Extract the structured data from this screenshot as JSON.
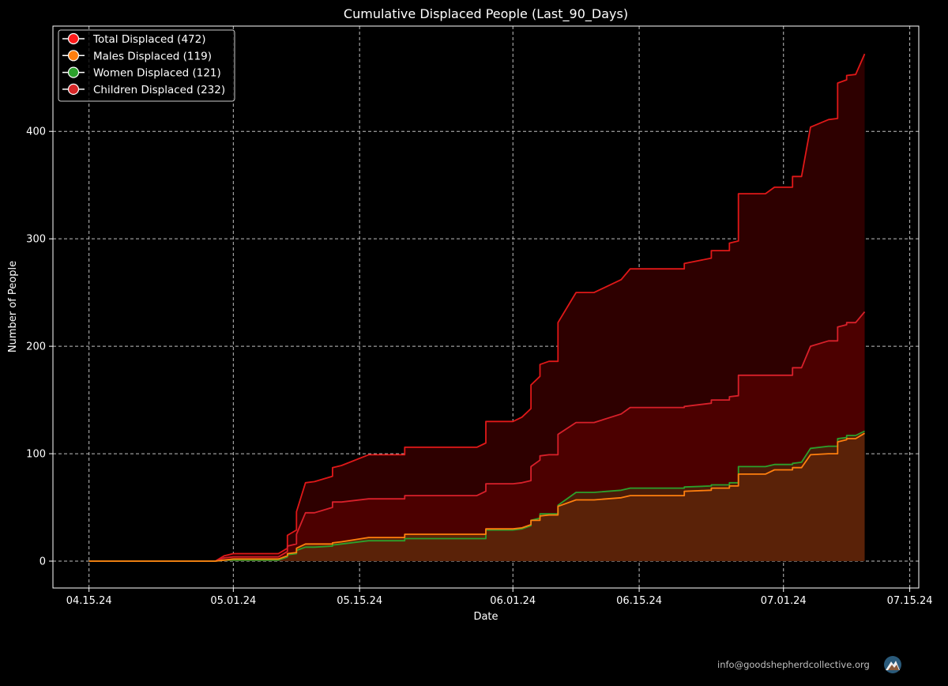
{
  "chart_data": {
    "type": "area",
    "title": "Cumulative Displaced People (Last_90_Days)",
    "xlabel": "Date",
    "ylabel": "Number of People",
    "ylim": [
      -25,
      498
    ],
    "xlim": [
      "2024-04-11",
      "2024-07-16"
    ],
    "grid": true,
    "legend_position": "top-left",
    "x_ticks": [
      {
        "date": "2024-04-15",
        "label": "04.15.24"
      },
      {
        "date": "2024-05-01",
        "label": "05.01.24"
      },
      {
        "date": "2024-05-15",
        "label": "05.15.24"
      },
      {
        "date": "2024-06-01",
        "label": "06.01.24"
      },
      {
        "date": "2024-06-15",
        "label": "06.15.24"
      },
      {
        "date": "2024-07-01",
        "label": "07.01.24"
      },
      {
        "date": "2024-07-15",
        "label": "07.15.24"
      }
    ],
    "y_ticks": [
      0,
      100,
      200,
      300,
      400
    ],
    "series": [
      {
        "name": "Total Displaced (472)",
        "line_color": "#e01818",
        "fill_color": "#2e0000",
        "marker_color": "#ff1a1a",
        "points": [
          [
            "2024-04-15",
            0
          ],
          [
            "2024-04-29",
            0
          ],
          [
            "2024-04-30",
            5
          ],
          [
            "2024-05-01",
            7
          ],
          [
            "2024-05-06",
            7
          ],
          [
            "2024-05-07",
            12
          ],
          [
            "2024-05-07",
            24
          ],
          [
            "2024-05-08",
            29
          ],
          [
            "2024-05-08",
            46
          ],
          [
            "2024-05-09",
            73
          ],
          [
            "2024-05-10",
            74
          ],
          [
            "2024-05-12",
            79
          ],
          [
            "2024-05-12",
            87
          ],
          [
            "2024-05-13",
            89
          ],
          [
            "2024-05-16",
            99
          ],
          [
            "2024-05-20",
            99
          ],
          [
            "2024-05-20",
            106
          ],
          [
            "2024-05-28",
            106
          ],
          [
            "2024-05-29",
            110
          ],
          [
            "2024-05-29",
            130
          ],
          [
            "2024-06-01",
            130
          ],
          [
            "2024-06-02",
            134
          ],
          [
            "2024-06-03",
            142
          ],
          [
            "2024-06-03",
            164
          ],
          [
            "2024-06-04",
            172
          ],
          [
            "2024-06-04",
            183
          ],
          [
            "2024-06-05",
            186
          ],
          [
            "2024-06-06",
            186
          ],
          [
            "2024-06-06",
            222
          ],
          [
            "2024-06-08",
            250
          ],
          [
            "2024-06-10",
            250
          ],
          [
            "2024-06-13",
            262
          ],
          [
            "2024-06-14",
            272
          ],
          [
            "2024-06-20",
            272
          ],
          [
            "2024-06-20",
            277
          ],
          [
            "2024-06-23",
            282
          ],
          [
            "2024-06-23",
            289
          ],
          [
            "2024-06-25",
            289
          ],
          [
            "2024-06-25",
            296
          ],
          [
            "2024-06-26",
            298
          ],
          [
            "2024-06-26",
            342
          ],
          [
            "2024-06-29",
            342
          ],
          [
            "2024-06-30",
            348
          ],
          [
            "2024-07-02",
            348
          ],
          [
            "2024-07-02",
            358
          ],
          [
            "2024-07-03",
            358
          ],
          [
            "2024-07-04",
            404
          ],
          [
            "2024-07-06",
            411
          ],
          [
            "2024-07-07",
            412
          ],
          [
            "2024-07-07",
            445
          ],
          [
            "2024-07-08",
            448
          ],
          [
            "2024-07-08",
            452
          ],
          [
            "2024-07-09",
            453
          ],
          [
            "2024-07-10",
            472
          ]
        ]
      },
      {
        "name": "Children Displaced (232)",
        "line_color": "#d8202a",
        "fill_color": "#4c0000",
        "marker_color": "#d62728",
        "points": [
          [
            "2024-04-15",
            0
          ],
          [
            "2024-04-29",
            0
          ],
          [
            "2024-04-30",
            3
          ],
          [
            "2024-05-01",
            4
          ],
          [
            "2024-05-06",
            4
          ],
          [
            "2024-05-07",
            9
          ],
          [
            "2024-05-07",
            14
          ],
          [
            "2024-05-08",
            16
          ],
          [
            "2024-05-08",
            25
          ],
          [
            "2024-05-09",
            45
          ],
          [
            "2024-05-10",
            45
          ],
          [
            "2024-05-12",
            50
          ],
          [
            "2024-05-12",
            55
          ],
          [
            "2024-05-13",
            55
          ],
          [
            "2024-05-16",
            58
          ],
          [
            "2024-05-20",
            58
          ],
          [
            "2024-05-20",
            61
          ],
          [
            "2024-05-28",
            61
          ],
          [
            "2024-05-29",
            65
          ],
          [
            "2024-05-29",
            72
          ],
          [
            "2024-06-01",
            72
          ],
          [
            "2024-06-02",
            73
          ],
          [
            "2024-06-03",
            75
          ],
          [
            "2024-06-03",
            88
          ],
          [
            "2024-06-04",
            94
          ],
          [
            "2024-06-04",
            98
          ],
          [
            "2024-06-05",
            99
          ],
          [
            "2024-06-06",
            99
          ],
          [
            "2024-06-06",
            118
          ],
          [
            "2024-06-08",
            129
          ],
          [
            "2024-06-10",
            129
          ],
          [
            "2024-06-13",
            137
          ],
          [
            "2024-06-14",
            143
          ],
          [
            "2024-06-20",
            143
          ],
          [
            "2024-06-20",
            144
          ],
          [
            "2024-06-23",
            147
          ],
          [
            "2024-06-23",
            150
          ],
          [
            "2024-06-25",
            150
          ],
          [
            "2024-06-25",
            153
          ],
          [
            "2024-06-26",
            154
          ],
          [
            "2024-06-26",
            173
          ],
          [
            "2024-06-29",
            173
          ],
          [
            "2024-06-30",
            173
          ],
          [
            "2024-07-02",
            173
          ],
          [
            "2024-07-02",
            180
          ],
          [
            "2024-07-03",
            180
          ],
          [
            "2024-07-04",
            200
          ],
          [
            "2024-07-06",
            205
          ],
          [
            "2024-07-07",
            205
          ],
          [
            "2024-07-07",
            218
          ],
          [
            "2024-07-08",
            220
          ],
          [
            "2024-07-08",
            222
          ],
          [
            "2024-07-09",
            222
          ],
          [
            "2024-07-10",
            232
          ]
        ]
      },
      {
        "name": "Women Displaced (121)",
        "line_color": "#2ca02c",
        "fill_color": "#4a1c08",
        "marker_color": "#2ca02c",
        "points": [
          [
            "2024-04-15",
            0
          ],
          [
            "2024-04-29",
            0
          ],
          [
            "2024-04-30",
            1
          ],
          [
            "2024-05-01",
            1
          ],
          [
            "2024-05-06",
            1
          ],
          [
            "2024-05-07",
            4
          ],
          [
            "2024-05-07",
            6
          ],
          [
            "2024-05-08",
            7
          ],
          [
            "2024-05-08",
            10
          ],
          [
            "2024-05-09",
            13
          ],
          [
            "2024-05-10",
            13
          ],
          [
            "2024-05-12",
            14
          ],
          [
            "2024-05-12",
            15
          ],
          [
            "2024-05-13",
            16
          ],
          [
            "2024-05-16",
            19
          ],
          [
            "2024-05-20",
            19
          ],
          [
            "2024-05-20",
            21
          ],
          [
            "2024-05-28",
            21
          ],
          [
            "2024-05-29",
            21
          ],
          [
            "2024-05-29",
            29
          ],
          [
            "2024-06-01",
            29
          ],
          [
            "2024-06-02",
            30
          ],
          [
            "2024-06-03",
            33
          ],
          [
            "2024-06-03",
            38
          ],
          [
            "2024-06-04",
            40
          ],
          [
            "2024-06-04",
            44
          ],
          [
            "2024-06-05",
            44
          ],
          [
            "2024-06-06",
            44
          ],
          [
            "2024-06-06",
            52
          ],
          [
            "2024-06-08",
            64
          ],
          [
            "2024-06-10",
            64
          ],
          [
            "2024-06-13",
            66
          ],
          [
            "2024-06-14",
            68
          ],
          [
            "2024-06-20",
            68
          ],
          [
            "2024-06-20",
            69
          ],
          [
            "2024-06-23",
            70
          ],
          [
            "2024-06-23",
            71
          ],
          [
            "2024-06-25",
            71
          ],
          [
            "2024-06-25",
            73
          ],
          [
            "2024-06-26",
            73
          ],
          [
            "2024-06-26",
            88
          ],
          [
            "2024-06-29",
            88
          ],
          [
            "2024-06-30",
            90
          ],
          [
            "2024-07-02",
            90
          ],
          [
            "2024-07-02",
            91
          ],
          [
            "2024-07-03",
            92
          ],
          [
            "2024-07-04",
            105
          ],
          [
            "2024-07-06",
            107
          ],
          [
            "2024-07-07",
            107
          ],
          [
            "2024-07-07",
            114
          ],
          [
            "2024-07-08",
            115
          ],
          [
            "2024-07-08",
            117
          ],
          [
            "2024-07-09",
            117
          ],
          [
            "2024-07-10",
            121
          ]
        ]
      },
      {
        "name": "Males Displaced (119)",
        "line_color": "#ff7f0e",
        "fill_color": "#5a2208",
        "marker_color": "#ff7f0e",
        "points": [
          [
            "2024-04-15",
            0
          ],
          [
            "2024-04-29",
            0
          ],
          [
            "2024-04-30",
            1
          ],
          [
            "2024-05-01",
            2
          ],
          [
            "2024-05-06",
            2
          ],
          [
            "2024-05-07",
            5
          ],
          [
            "2024-05-07",
            7
          ],
          [
            "2024-05-08",
            8
          ],
          [
            "2024-05-08",
            12
          ],
          [
            "2024-05-09",
            16
          ],
          [
            "2024-05-10",
            16
          ],
          [
            "2024-05-12",
            16
          ],
          [
            "2024-05-12",
            17
          ],
          [
            "2024-05-13",
            18
          ],
          [
            "2024-05-16",
            22
          ],
          [
            "2024-05-20",
            22
          ],
          [
            "2024-05-20",
            25
          ],
          [
            "2024-05-28",
            25
          ],
          [
            "2024-05-29",
            25
          ],
          [
            "2024-05-29",
            30
          ],
          [
            "2024-06-01",
            30
          ],
          [
            "2024-06-02",
            31
          ],
          [
            "2024-06-03",
            34
          ],
          [
            "2024-06-03",
            38
          ],
          [
            "2024-06-04",
            38
          ],
          [
            "2024-06-04",
            42
          ],
          [
            "2024-06-05",
            43
          ],
          [
            "2024-06-06",
            43
          ],
          [
            "2024-06-06",
            51
          ],
          [
            "2024-06-08",
            57
          ],
          [
            "2024-06-10",
            57
          ],
          [
            "2024-06-13",
            59
          ],
          [
            "2024-06-14",
            61
          ],
          [
            "2024-06-20",
            61
          ],
          [
            "2024-06-20",
            65
          ],
          [
            "2024-06-23",
            66
          ],
          [
            "2024-06-23",
            68
          ],
          [
            "2024-06-25",
            68
          ],
          [
            "2024-06-25",
            70
          ],
          [
            "2024-06-26",
            70
          ],
          [
            "2024-06-26",
            81
          ],
          [
            "2024-06-29",
            81
          ],
          [
            "2024-06-30",
            85
          ],
          [
            "2024-07-02",
            85
          ],
          [
            "2024-07-02",
            87
          ],
          [
            "2024-07-03",
            87
          ],
          [
            "2024-07-04",
            99
          ],
          [
            "2024-07-06",
            100
          ],
          [
            "2024-07-07",
            100
          ],
          [
            "2024-07-07",
            111
          ],
          [
            "2024-07-08",
            113
          ],
          [
            "2024-07-08",
            114
          ],
          [
            "2024-07-09",
            114
          ],
          [
            "2024-07-10",
            119
          ]
        ]
      }
    ],
    "legend_order": [
      "Total Displaced (472)",
      "Males Displaced (119)",
      "Women Displaced (121)",
      "Children Displaced (232)"
    ]
  },
  "footer": {
    "email": "info@goodshepherdcollective.org",
    "logo_icon": "mountain-logo-icon"
  },
  "colors": {
    "background": "#000000",
    "grid": "#bfbfbf",
    "axes": "#ffffff"
  }
}
